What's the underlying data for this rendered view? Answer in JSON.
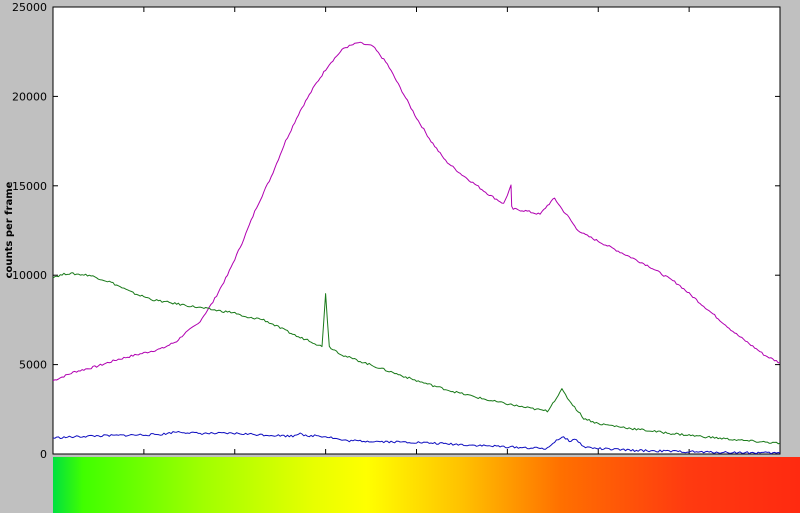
{
  "chart_data": {
    "type": "line",
    "title": "",
    "xlabel": "",
    "ylabel": "counts per frame",
    "xlim": [
      0,
      100
    ],
    "ylim": [
      0,
      25000
    ],
    "yticks": [
      "0",
      "5000",
      "10000",
      "15000",
      "20000",
      "25000"
    ],
    "yticks_values": [
      0,
      5000,
      10000,
      15000,
      20000,
      25000
    ],
    "xticks_count": 8,
    "grid": false,
    "series": [
      {
        "color": "#b000b0",
        "x": [
          0,
          3,
          6,
          9,
          12,
          15,
          17,
          18,
          20,
          22,
          24,
          26,
          28,
          30,
          32,
          34,
          36,
          38,
          40,
          42,
          44,
          46,
          48,
          50,
          52,
          54,
          56,
          58,
          60,
          62,
          63,
          63.1,
          63.3,
          65,
          67,
          68,
          69,
          70,
          71,
          72,
          73,
          74,
          75,
          76,
          78,
          80,
          82,
          84,
          86,
          88,
          90,
          92,
          94,
          96,
          98,
          100
        ],
        "y": [
          4100,
          4600,
          4900,
          5300,
          5600,
          5900,
          6300,
          6700,
          7300,
          8500,
          10000,
          11800,
          13800,
          15500,
          17500,
          19200,
          20600,
          21800,
          22700,
          23000,
          22800,
          21800,
          20300,
          18800,
          17500,
          16400,
          15700,
          15100,
          14500,
          14000,
          15000,
          13800,
          13700,
          13600,
          13400,
          13900,
          14300,
          13700,
          13200,
          12600,
          12300,
          12100,
          11900,
          11700,
          11300,
          10900,
          10500,
          10000,
          9500,
          8800,
          8100,
          7400,
          6700,
          6100,
          5500,
          5100
        ]
      },
      {
        "color": "#1a7a1a",
        "x": [
          0,
          2,
          5,
          8,
          11,
          14,
          17,
          20,
          23,
          25,
          26,
          27,
          28,
          29,
          30,
          31,
          32,
          33,
          34,
          35,
          36,
          37,
          37.5,
          38,
          40,
          45,
          50,
          55,
          60,
          65,
          68,
          69,
          70,
          71,
          72,
          73,
          75,
          80,
          85,
          90,
          95,
          100
        ],
        "y": [
          9900,
          10100,
          10000,
          9600,
          9000,
          8600,
          8400,
          8200,
          8000,
          7900,
          7700,
          7600,
          7600,
          7500,
          7300,
          7100,
          6900,
          6700,
          6500,
          6400,
          6200,
          6000,
          9000,
          6000,
          5500,
          4800,
          4100,
          3500,
          3000,
          2600,
          2400,
          3000,
          3600,
          3000,
          2500,
          2000,
          1700,
          1400,
          1150,
          950,
          750,
          600
        ]
      },
      {
        "color": "#1010c0",
        "x": [
          0,
          5,
          10,
          15,
          17,
          20,
          25,
          30,
          33,
          34,
          35,
          36,
          38,
          40,
          45,
          50,
          55,
          60,
          65,
          68,
          69,
          70,
          71,
          72,
          73,
          75,
          80,
          85,
          90,
          95,
          100
        ],
        "y": [
          900,
          1000,
          1050,
          1100,
          1250,
          1150,
          1150,
          1050,
          1000,
          1200,
          950,
          1050,
          950,
          750,
          700,
          650,
          550,
          450,
          350,
          300,
          700,
          950,
          750,
          800,
          400,
          300,
          200,
          150,
          100,
          80,
          50
        ]
      }
    ]
  },
  "colorbar": {
    "stops": [
      {
        "color": "#00e040",
        "pos": 0
      },
      {
        "color": "#40ff00",
        "pos": 4
      },
      {
        "color": "#a0ff00",
        "pos": 20
      },
      {
        "color": "#e8ff00",
        "pos": 35
      },
      {
        "color": "#ffff00",
        "pos": 42
      },
      {
        "color": "#ffc000",
        "pos": 55
      },
      {
        "color": "#ff7000",
        "pos": 68
      },
      {
        "color": "#ff3a10",
        "pos": 85
      },
      {
        "color": "#ff2a10",
        "pos": 100
      }
    ]
  }
}
